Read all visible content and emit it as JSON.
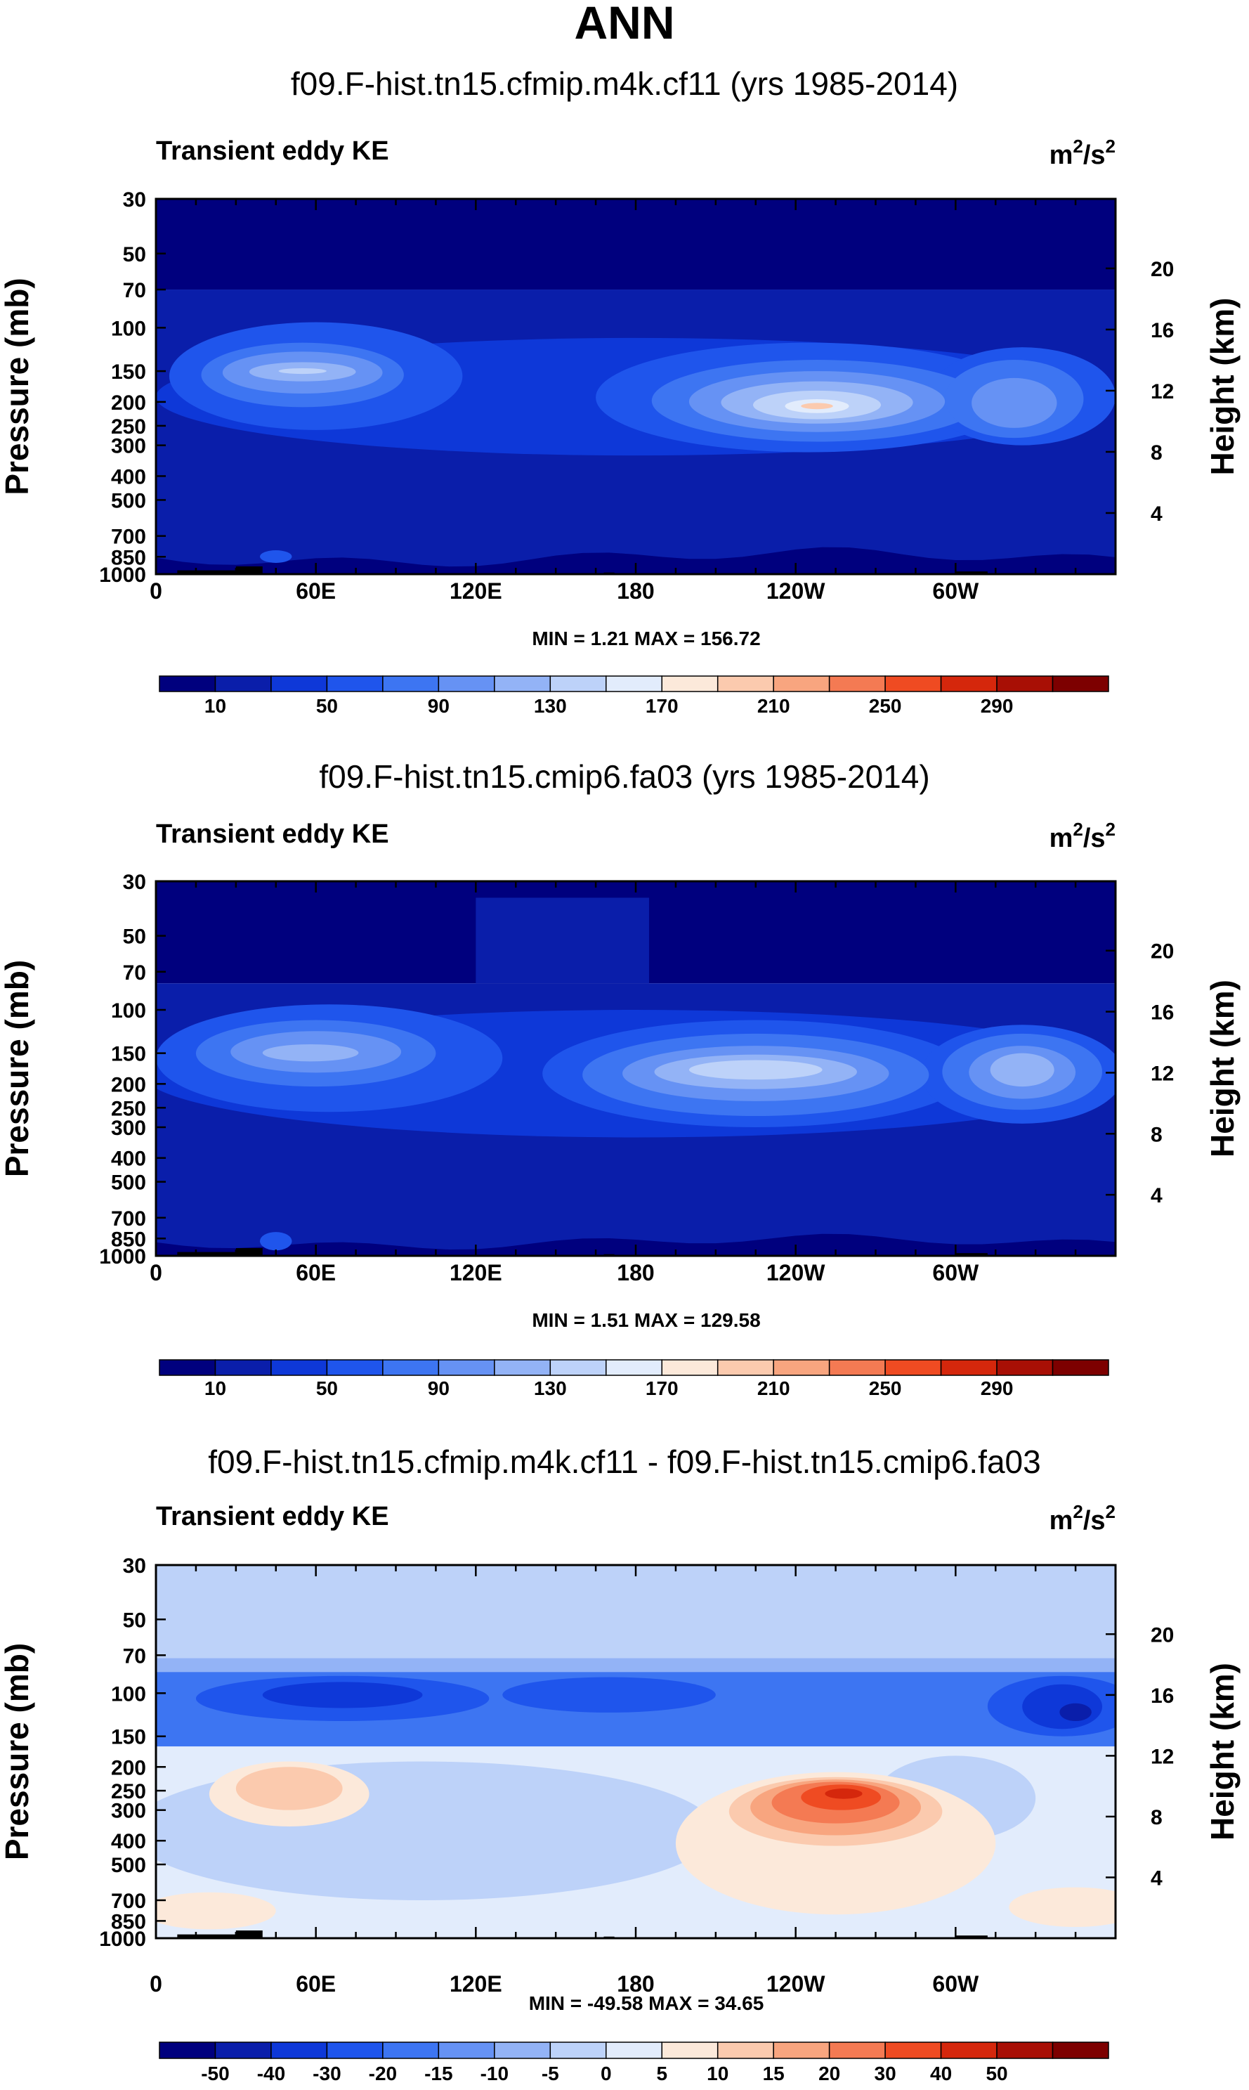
{
  "page_title": "ANN",
  "y_left_label": "Pressure (mb)",
  "y_right_label": "Height (km)",
  "chart_data": [
    {
      "type": "contour",
      "title": "f09.F-hist.tn15.cfmip.m4k.cf11 (yrs 1985-2014)",
      "left_label": "Transient eddy KE",
      "units": "m²/s²",
      "units_base": "m",
      "units_sup1": "2",
      "units_mid": "/s",
      "units_sup2": "2",
      "x_ticks": [
        "0",
        "60E",
        "120E",
        "180",
        "120W",
        "60W"
      ],
      "x_tick_lons": [
        0,
        60,
        120,
        180,
        240,
        300
      ],
      "xlim": [
        0,
        360
      ],
      "y_ticks": [
        "30",
        "50",
        "70",
        "100",
        "150",
        "200",
        "250",
        "300",
        "400",
        "500",
        "700",
        "850",
        "1000"
      ],
      "y_tick_values": [
        30,
        50,
        70,
        100,
        150,
        200,
        250,
        300,
        400,
        500,
        700,
        850,
        1000
      ],
      "ylim": [
        1000,
        30
      ],
      "height_ticks": [
        "20",
        "16",
        "12",
        "8",
        "4"
      ],
      "height_values": [
        20,
        16,
        12,
        8,
        4
      ],
      "stats": "MIN =   1.21   MAX = 156.72",
      "min": 1.21,
      "max": 156.72,
      "colorbar_labels": [
        "10",
        "50",
        "90",
        "130",
        "170",
        "210",
        "250",
        "290"
      ],
      "colorbar_colors": [
        "#00007e",
        "#0a1eaa",
        "#0e38d8",
        "#1f55ec",
        "#3d75f2",
        "#6692f4",
        "#93b3f6",
        "#bdd2f9",
        "#e2ecfc",
        "#fce9da",
        "#fbcaae",
        "#f8a57f",
        "#f47a53",
        "#ef4b22",
        "#d5270c",
        "#a80f05",
        "#7d0000"
      ],
      "features": [
        {
          "lon": 55,
          "p": 155,
          "value": 110,
          "desc": "jet core"
        },
        {
          "lon": 248,
          "p": 210,
          "value": 156,
          "desc": "jet core"
        },
        {
          "lon": 320,
          "p": 210,
          "value": 110,
          "desc": "jet core"
        }
      ]
    },
    {
      "type": "contour",
      "title": "f09.F-hist.tn15.cmip6.fa03 (yrs 1985-2014)",
      "left_label": "Transient eddy KE",
      "units": "m²/s²",
      "units_base": "m",
      "units_sup1": "2",
      "units_mid": "/s",
      "units_sup2": "2",
      "x_ticks": [
        "0",
        "60E",
        "120E",
        "180",
        "120W",
        "60W"
      ],
      "x_tick_lons": [
        0,
        60,
        120,
        180,
        240,
        300
      ],
      "xlim": [
        0,
        360
      ],
      "y_ticks": [
        "30",
        "50",
        "70",
        "100",
        "150",
        "200",
        "250",
        "300",
        "400",
        "500",
        "700",
        "850",
        "1000"
      ],
      "y_tick_values": [
        30,
        50,
        70,
        100,
        150,
        200,
        250,
        300,
        400,
        500,
        700,
        850,
        1000
      ],
      "ylim": [
        1000,
        30
      ],
      "height_ticks": [
        "20",
        "16",
        "12",
        "8",
        "4"
      ],
      "height_values": [
        20,
        16,
        12,
        8,
        4
      ],
      "stats": "MIN =   1.51   MAX = 129.58",
      "min": 1.51,
      "max": 129.58,
      "colorbar_labels": [
        "10",
        "50",
        "90",
        "130",
        "170",
        "210",
        "250",
        "290"
      ],
      "colorbar_colors": [
        "#00007e",
        "#0a1eaa",
        "#0e38d8",
        "#1f55ec",
        "#3d75f2",
        "#6692f4",
        "#93b3f6",
        "#bdd2f9",
        "#e2ecfc",
        "#fce9da",
        "#fbcaae",
        "#f8a57f",
        "#f47a53",
        "#ef4b22",
        "#d5270c",
        "#a80f05",
        "#7d0000"
      ],
      "features": [
        {
          "lon": 60,
          "p": 150,
          "value": 105,
          "desc": "jet core"
        },
        {
          "lon": 225,
          "p": 175,
          "value": 125,
          "desc": "jet core"
        },
        {
          "lon": 325,
          "p": 175,
          "value": 115,
          "desc": "jet core"
        }
      ]
    },
    {
      "type": "contour",
      "title": "f09.F-hist.tn15.cfmip.m4k.cf11 - f09.F-hist.tn15.cmip6.fa03",
      "left_label": "Transient eddy KE",
      "units": "m²/s²",
      "units_base": "m",
      "units_sup1": "2",
      "units_mid": "/s",
      "units_sup2": "2",
      "x_ticks": [
        "0",
        "60E",
        "120E",
        "180",
        "120W",
        "60W"
      ],
      "x_tick_lons": [
        0,
        60,
        120,
        180,
        240,
        300
      ],
      "xlim": [
        0,
        360
      ],
      "y_ticks": [
        "30",
        "50",
        "70",
        "100",
        "150",
        "200",
        "250",
        "300",
        "400",
        "500",
        "700",
        "850",
        "1000"
      ],
      "y_tick_values": [
        30,
        50,
        70,
        100,
        150,
        200,
        250,
        300,
        400,
        500,
        700,
        850,
        1000
      ],
      "ylim": [
        1000,
        30
      ],
      "height_ticks": [
        "20",
        "16",
        "12",
        "8",
        "4"
      ],
      "height_values": [
        20,
        16,
        12,
        8,
        4
      ],
      "stats": "MIN = -49.58   MAX =  34.65",
      "min": -49.58,
      "max": 34.65,
      "colorbar_labels": [
        "-50",
        "-40",
        "-30",
        "-20",
        "-15",
        "-10",
        "-5",
        "0",
        "5",
        "10",
        "15",
        "20",
        "30",
        "40",
        "50"
      ],
      "colorbar_colors": [
        "#00007e",
        "#0a1eaa",
        "#0e38d8",
        "#1f55ec",
        "#3d75f2",
        "#6692f4",
        "#93b3f6",
        "#bdd2f9",
        "#e2ecfc",
        "#fce9da",
        "#fbcaae",
        "#f8a57f",
        "#f47a53",
        "#ef4b22",
        "#d5270c",
        "#a80f05",
        "#7d0000"
      ],
      "features": [
        {
          "lon": 50,
          "p": 250,
          "value": 12,
          "desc": "positive anomaly"
        },
        {
          "lon": 255,
          "p": 280,
          "value": 34,
          "desc": "positive anomaly"
        },
        {
          "lon": 70,
          "p": 100,
          "value": -35,
          "desc": "negative anomaly"
        },
        {
          "lon": 340,
          "p": 110,
          "value": -45,
          "desc": "negative anomaly"
        }
      ]
    }
  ]
}
